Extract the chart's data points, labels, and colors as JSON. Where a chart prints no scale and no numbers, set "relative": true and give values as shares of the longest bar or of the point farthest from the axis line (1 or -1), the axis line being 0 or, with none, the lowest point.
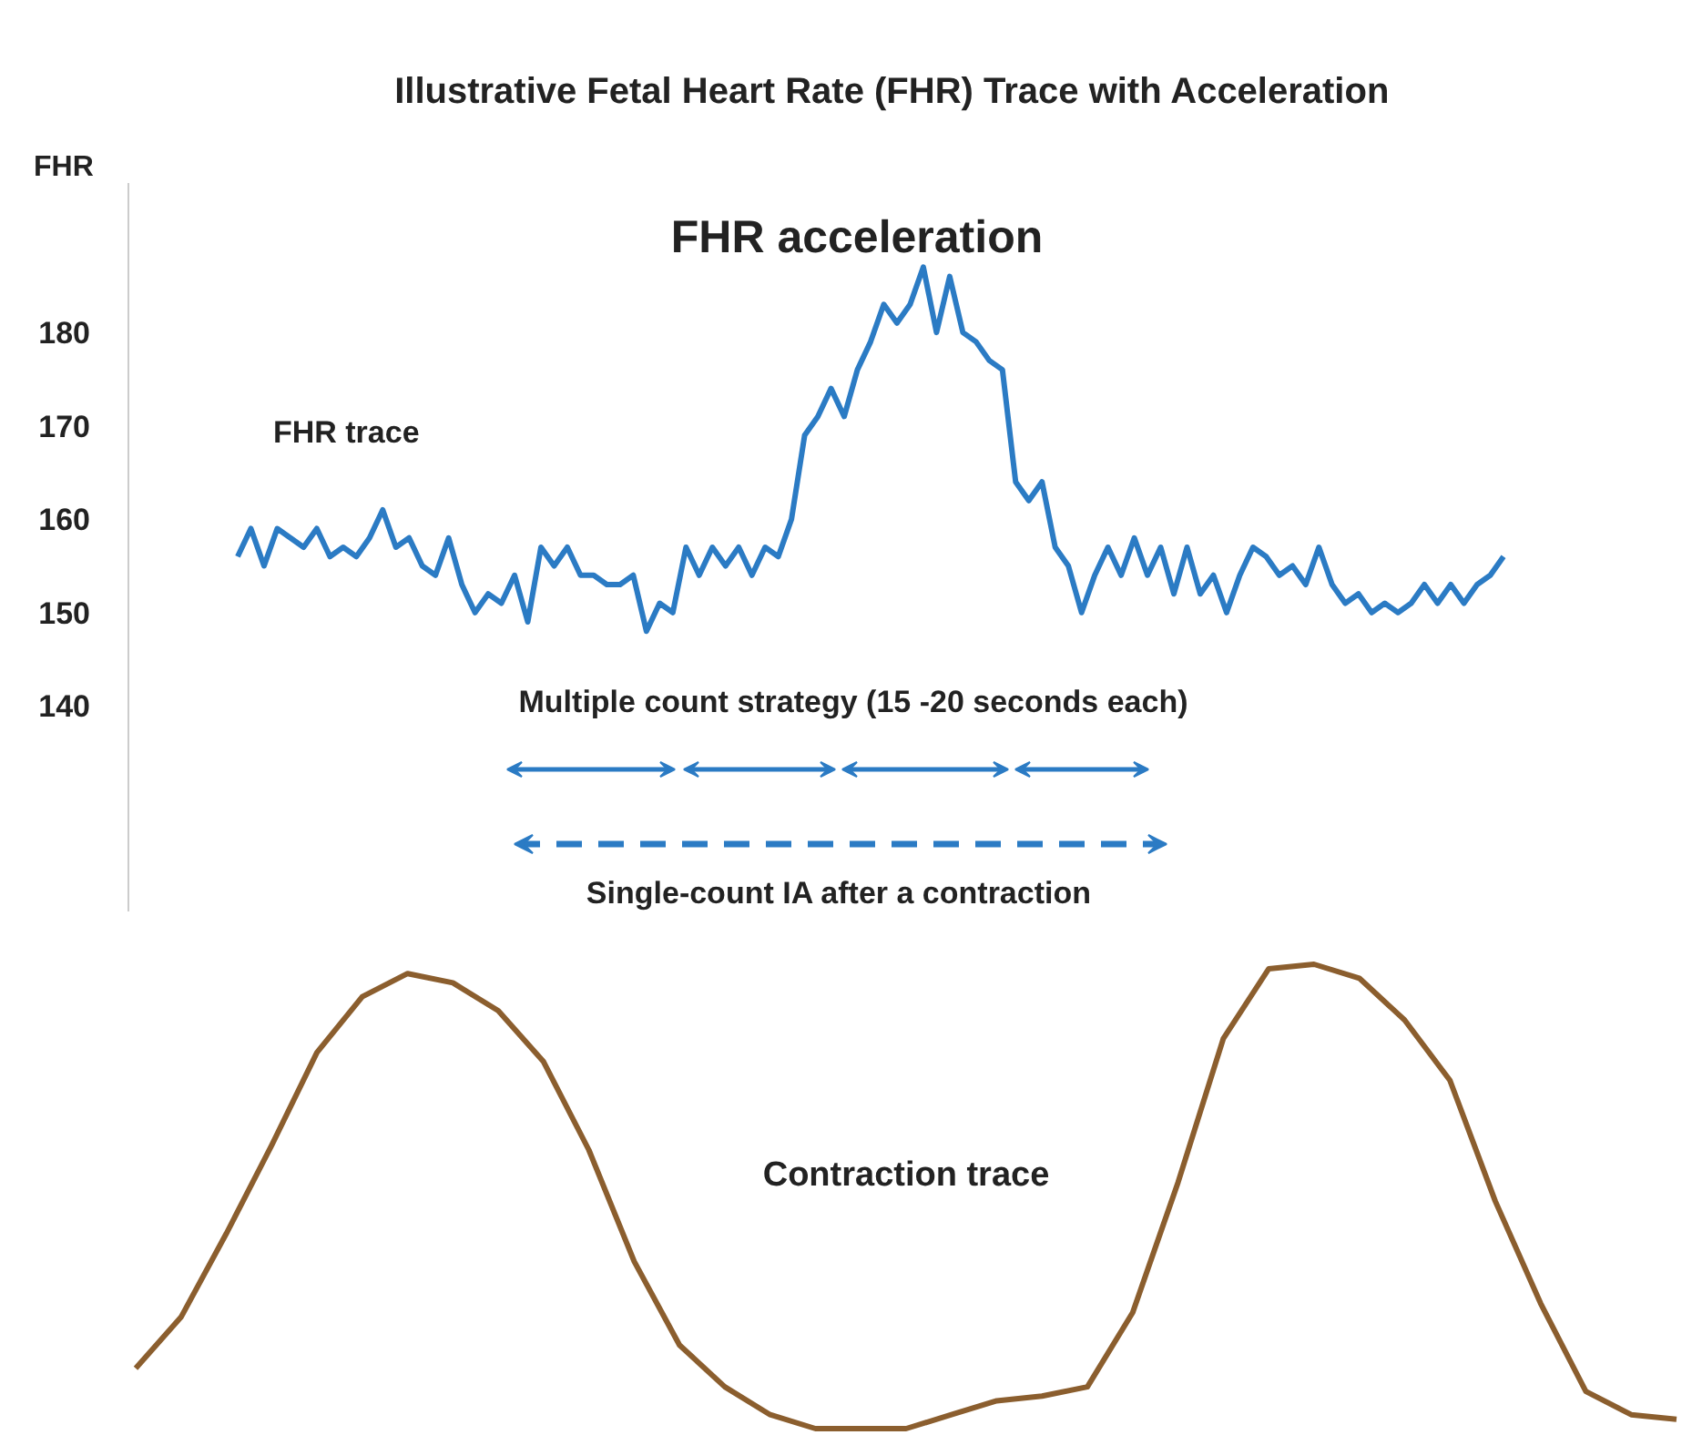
{
  "chart_data": [
    {
      "type": "line",
      "title": "Illustrative Fetal Heart Rate (FHR) Trace with Acceleration",
      "ylabel": "FHR",
      "categories": [
        null,
        null,
        null,
        null,
        null,
        null,
        null,
        null,
        null,
        null,
        null,
        null,
        null,
        null,
        null,
        null,
        null,
        null,
        null,
        null,
        null,
        null,
        null,
        null,
        null,
        null,
        null,
        null,
        null,
        null,
        null,
        null,
        null,
        null,
        null,
        null,
        null,
        null,
        null,
        null,
        null,
        null,
        null,
        null,
        null,
        null,
        null,
        null,
        null,
        null,
        null,
        null,
        null,
        null,
        null,
        null,
        null,
        null,
        null,
        null,
        null,
        null,
        null,
        null,
        null,
        null,
        null,
        null,
        null,
        null,
        null,
        null,
        null,
        null,
        null,
        null,
        null,
        null,
        null,
        null,
        null,
        null,
        null,
        null,
        null,
        null,
        null,
        null,
        null,
        null,
        null,
        null,
        null,
        null,
        null,
        null,
        null
      ],
      "series": [
        {
          "color": "#2b7bc4",
          "values": [
            156,
            159,
            155,
            159,
            158,
            157,
            159,
            156,
            157,
            156,
            158,
            161,
            157,
            158,
            155,
            154,
            158,
            153,
            150,
            152,
            151,
            154,
            149,
            157,
            155,
            157,
            154,
            154,
            153,
            153,
            154,
            148,
            151,
            150,
            157,
            154,
            157,
            155,
            157,
            154,
            157,
            156,
            160,
            169,
            171,
            174,
            171,
            176,
            179,
            183,
            181,
            183,
            187,
            180,
            186,
            180,
            179,
            177,
            176,
            164,
            162,
            164,
            157,
            155,
            150,
            154,
            157,
            154,
            158,
            154,
            157,
            152,
            157,
            152,
            154,
            150,
            154,
            157,
            156,
            154,
            155,
            153,
            157,
            153,
            151,
            152,
            150,
            151,
            150,
            151,
            153,
            151,
            153,
            151,
            153,
            154,
            156
          ]
        }
      ],
      "ylim": [
        118,
        196
      ],
      "yticks": [
        140,
        150,
        160,
        170,
        180
      ],
      "tick_labels": "y",
      "grid": false,
      "annotations": [
        "FHR acceleration",
        "FHR  trace",
        "Multiple count strategy (15 -20 seconds each)",
        "Single-count IA  after  a contraction"
      ]
    },
    {
      "type": "line",
      "relative": true,
      "categories": [
        null,
        null,
        null,
        null,
        null,
        null,
        null,
        null,
        null,
        null,
        null,
        null,
        null,
        null,
        null,
        null,
        null,
        null,
        null,
        null,
        null,
        null,
        null,
        null,
        null,
        null,
        null,
        null,
        null,
        null,
        null,
        null,
        null,
        null,
        null
      ],
      "series": [
        {
          "color": "#8b5e2e",
          "values": [
            0.13,
            0.24,
            0.42,
            0.61,
            0.81,
            0.93,
            0.98,
            0.96,
            0.9,
            0.79,
            0.6,
            0.36,
            0.18,
            0.09,
            0.03,
            0,
            0,
            0,
            0.03,
            0.06,
            0.07,
            0.09,
            0.25,
            0.53,
            0.84,
            0.99,
            1.0,
            0.97,
            0.88,
            0.75,
            0.49,
            0.27,
            0.08,
            0.03,
            0.02
          ]
        }
      ],
      "grid": false,
      "annotations": [
        "Contraction trace"
      ]
    }
  ]
}
